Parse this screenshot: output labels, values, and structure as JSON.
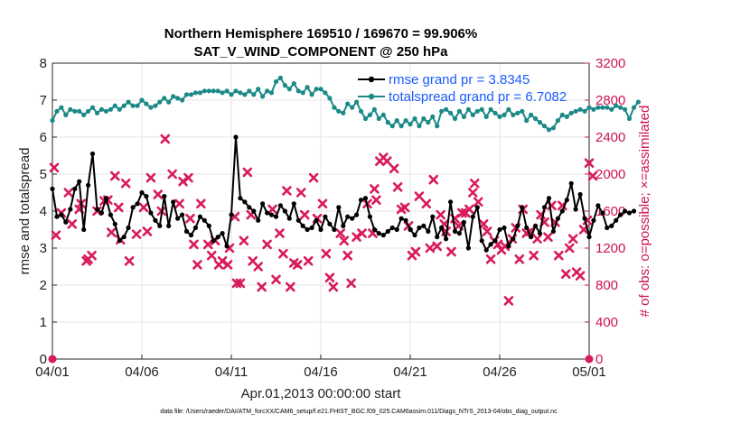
{
  "colors": {
    "rmse": "#000000",
    "spread": "#1b8a86",
    "obs": "#d81b5c",
    "right_axis": "#cc1155",
    "legend_text": "#1a5cff",
    "grid": "#e6e6e6"
  },
  "chart_data": {
    "type": "line",
    "title": "Northern Hemisphere 169510 / 169670 = 99.906%",
    "subtitle": "SAT_V_WIND_COMPONENT @ 250 hPa",
    "xlabel": "Apr.01,2013 00:00:00 start",
    "ylabel": "rmse and totalspread",
    "y2label": "# of obs: o=possible; ×=assimilated",
    "footnote": "data file: /Users/raeder/DAI/ATM_forcXX/CAM6_setup/f.e21.FHIST_BGC.f09_025.CAM6assim.011/Diags_NTrS_2013-04/obs_diag_output.nc",
    "xlim": [
      0,
      30
    ],
    "ylim": [
      0,
      8
    ],
    "y2lim": [
      0,
      3200
    ],
    "x_ticks": [
      0,
      5,
      10,
      15,
      20,
      25,
      30
    ],
    "x_tick_labels": [
      "04/01",
      "04/06",
      "04/11",
      "04/16",
      "04/21",
      "04/26",
      "05/01"
    ],
    "y_ticks": [
      "0",
      "1",
      "2",
      "3",
      "4",
      "5",
      "6",
      "7",
      "8"
    ],
    "y2_ticks": [
      "0",
      "400",
      "800",
      "1200",
      "1600",
      "2000",
      "2400",
      "2800",
      "3200"
    ],
    "legend": [
      "rmse grand pr = 3.8345",
      "totalspread grand pr = 6.7082"
    ],
    "legend_position": "top-right",
    "x_step": 0.25,
    "series": [
      {
        "name": "rmse",
        "values": [
          4.6,
          3.85,
          3.9,
          3.7,
          4.05,
          4.6,
          4.8,
          3.5,
          4.7,
          5.55,
          4.05,
          3.95,
          4.35,
          3.9,
          3.65,
          3.2,
          3.3,
          3.55,
          4.1,
          4.2,
          4.5,
          4.4,
          3.95,
          3.75,
          3.6,
          4.4,
          3.6,
          4.25,
          3.8,
          3.9,
          3.45,
          3.35,
          3.55,
          3.85,
          3.75,
          3.6,
          3.2,
          3.3,
          3.4,
          3.05,
          3.9,
          6.0,
          4.35,
          4.25,
          4.1,
          4.0,
          3.75,
          4.2,
          3.95,
          3.9,
          3.85,
          4.15,
          4.0,
          3.8,
          4.2,
          3.75,
          3.6,
          3.5,
          3.55,
          3.75,
          3.5,
          3.85,
          3.65,
          3.5,
          4.1,
          3.6,
          3.85,
          3.8,
          3.9,
          4.3,
          4.35,
          3.85,
          3.5,
          3.4,
          3.35,
          3.45,
          3.55,
          3.5,
          3.8,
          3.75,
          3.5,
          3.35,
          3.55,
          3.6,
          3.45,
          3.85,
          3.3,
          3.55,
          3.25,
          4.25,
          3.45,
          3.4,
          3.7,
          3.0,
          3.85,
          4.1,
          3.2,
          2.95,
          3.1,
          3.2,
          3.5,
          3.55,
          3.05,
          3.25,
          3.6,
          4.1,
          3.55,
          3.3,
          3.6,
          3.4,
          4.1,
          4.35,
          3.45,
          3.8,
          4.0,
          4.3,
          4.75,
          4.05,
          4.45,
          3.8,
          3.3,
          3.75,
          4.15,
          3.95,
          3.55,
          3.6,
          3.75,
          3.9,
          4.0,
          3.95,
          4.0
        ],
        "color": "#000000"
      },
      {
        "name": "totalspread",
        "values": [
          6.45,
          6.7,
          6.8,
          6.6,
          6.75,
          6.7,
          6.7,
          6.6,
          6.7,
          6.8,
          6.65,
          6.75,
          6.7,
          6.75,
          6.85,
          6.75,
          6.85,
          6.95,
          6.85,
          6.85,
          7.0,
          6.9,
          6.8,
          6.85,
          6.95,
          7.05,
          6.95,
          7.1,
          7.05,
          7.0,
          7.15,
          7.15,
          7.2,
          7.2,
          7.25,
          7.25,
          7.25,
          7.25,
          7.2,
          7.25,
          7.15,
          7.25,
          7.2,
          7.15,
          7.25,
          7.15,
          7.3,
          7.1,
          7.25,
          7.2,
          7.5,
          7.6,
          7.4,
          7.3,
          7.45,
          7.25,
          7.2,
          7.35,
          7.15,
          7.3,
          7.3,
          7.2,
          7.05,
          6.8,
          6.7,
          6.65,
          6.9,
          6.8,
          6.95,
          6.7,
          6.5,
          6.6,
          6.75,
          6.5,
          6.6,
          6.4,
          6.3,
          6.45,
          6.3,
          6.45,
          6.35,
          6.5,
          6.3,
          6.5,
          6.4,
          6.55,
          6.3,
          6.7,
          6.75,
          6.65,
          6.5,
          6.7,
          6.55,
          6.75,
          6.6,
          6.7,
          6.75,
          6.55,
          6.75,
          6.65,
          6.55,
          6.6,
          6.75,
          6.6,
          6.65,
          6.7,
          6.45,
          6.6,
          6.5,
          6.4,
          6.3,
          6.2,
          6.25,
          6.45,
          6.6,
          6.55,
          6.65,
          6.7,
          6.75,
          6.7,
          6.8,
          6.75,
          6.8,
          6.8,
          6.8,
          6.75,
          6.85,
          6.8,
          6.75,
          6.5,
          6.8,
          6.95
        ],
        "color": "#1b8a86"
      },
      {
        "name": "# of obs",
        "points": [
          [
            0.1,
            2070
          ],
          [
            0.2,
            1340
          ],
          [
            0.5,
            1580
          ],
          [
            0.9,
            1800
          ],
          [
            1.1,
            1460
          ],
          [
            1.5,
            1620
          ],
          [
            1.6,
            1680
          ],
          [
            1.9,
            1060
          ],
          [
            2.0,
            1080
          ],
          [
            2.2,
            1120
          ],
          [
            2.5,
            1600
          ],
          [
            2.9,
            1710
          ],
          [
            3.1,
            1720
          ],
          [
            3.3,
            1370
          ],
          [
            3.5,
            1980
          ],
          [
            3.7,
            1640
          ],
          [
            3.8,
            1290
          ],
          [
            4.1,
            1900
          ],
          [
            4.3,
            1060
          ],
          [
            4.7,
            1350
          ],
          [
            5.1,
            1640
          ],
          [
            5.3,
            1380
          ],
          [
            5.5,
            1960
          ],
          [
            5.9,
            1780
          ],
          [
            6.1,
            1600
          ],
          [
            6.3,
            2380
          ],
          [
            6.7,
            2000
          ],
          [
            7.1,
            1680
          ],
          [
            7.3,
            1920
          ],
          [
            7.6,
            1960
          ],
          [
            7.7,
            1520
          ],
          [
            7.9,
            1240
          ],
          [
            8.1,
            1020
          ],
          [
            8.3,
            1680
          ],
          [
            8.7,
            1240
          ],
          [
            8.9,
            1120
          ],
          [
            9.1,
            1280
          ],
          [
            9.3,
            1020
          ],
          [
            9.5,
            1060
          ],
          [
            9.8,
            1020
          ],
          [
            9.9,
            1200
          ],
          [
            10.2,
            1540
          ],
          [
            10.3,
            820
          ],
          [
            10.5,
            820
          ],
          [
            10.7,
            1280
          ],
          [
            10.9,
            2020
          ],
          [
            11.1,
            1560
          ],
          [
            11.2,
            1060
          ],
          [
            11.5,
            1000
          ],
          [
            11.7,
            780
          ],
          [
            12.0,
            1240
          ],
          [
            12.3,
            1620
          ],
          [
            12.5,
            860
          ],
          [
            12.7,
            1360
          ],
          [
            12.9,
            1140
          ],
          [
            13.1,
            1820
          ],
          [
            13.3,
            780
          ],
          [
            13.5,
            1040
          ],
          [
            13.7,
            1020
          ],
          [
            13.9,
            1800
          ],
          [
            14.1,
            1560
          ],
          [
            14.3,
            1060
          ],
          [
            14.6,
            1960
          ],
          [
            14.8,
            1520
          ],
          [
            15.1,
            1680
          ],
          [
            15.3,
            1140
          ],
          [
            15.5,
            880
          ],
          [
            15.7,
            780
          ],
          [
            16.1,
            1360
          ],
          [
            16.3,
            1280
          ],
          [
            16.5,
            1120
          ],
          [
            16.7,
            820
          ],
          [
            17.0,
            1320
          ],
          [
            17.3,
            1360
          ],
          [
            17.6,
            1680
          ],
          [
            17.9,
            1360
          ],
          [
            18.0,
            1840
          ],
          [
            18.1,
            1720
          ],
          [
            18.3,
            2140
          ],
          [
            18.5,
            2180
          ],
          [
            18.7,
            2140
          ],
          [
            19.1,
            2060
          ],
          [
            19.3,
            1860
          ],
          [
            19.5,
            1620
          ],
          [
            19.7,
            1640
          ],
          [
            19.9,
            1440
          ],
          [
            20.1,
            1120
          ],
          [
            20.3,
            1160
          ],
          [
            20.5,
            1760
          ],
          [
            20.9,
            1680
          ],
          [
            21.1,
            1200
          ],
          [
            21.3,
            1940
          ],
          [
            21.5,
            1220
          ],
          [
            21.7,
            1560
          ],
          [
            21.9,
            1460
          ],
          [
            22.0,
            1380
          ],
          [
            22.3,
            1160
          ],
          [
            22.5,
            1520
          ],
          [
            22.7,
            1440
          ],
          [
            22.9,
            1580
          ],
          [
            23.1,
            1580
          ],
          [
            23.3,
            1620
          ],
          [
            23.5,
            1800
          ],
          [
            23.6,
            1900
          ],
          [
            23.8,
            1700
          ],
          [
            24.1,
            1460
          ],
          [
            24.3,
            1380
          ],
          [
            24.5,
            1080
          ],
          [
            24.7,
            1280
          ],
          [
            24.9,
            1240
          ],
          [
            25.1,
            1180
          ],
          [
            25.3,
            1220
          ],
          [
            25.5,
            630
          ],
          [
            25.7,
            1300
          ],
          [
            25.9,
            1420
          ],
          [
            26.1,
            1080
          ],
          [
            26.3,
            1620
          ],
          [
            26.5,
            1360
          ],
          [
            26.7,
            1380
          ],
          [
            26.9,
            1120
          ],
          [
            27.1,
            1300
          ],
          [
            27.3,
            1560
          ],
          [
            27.5,
            1480
          ],
          [
            27.7,
            1320
          ],
          [
            27.9,
            1660
          ],
          [
            28.1,
            1480
          ],
          [
            28.3,
            1120
          ],
          [
            28.5,
            1660
          ],
          [
            28.7,
            920
          ],
          [
            28.9,
            1200
          ],
          [
            29.1,
            1300
          ],
          [
            29.3,
            940
          ],
          [
            29.5,
            900
          ],
          [
            29.7,
            1400
          ],
          [
            29.9,
            1500
          ],
          [
            30.0,
            2120
          ],
          [
            30.2,
            1980
          ]
        ]
      }
    ]
  }
}
